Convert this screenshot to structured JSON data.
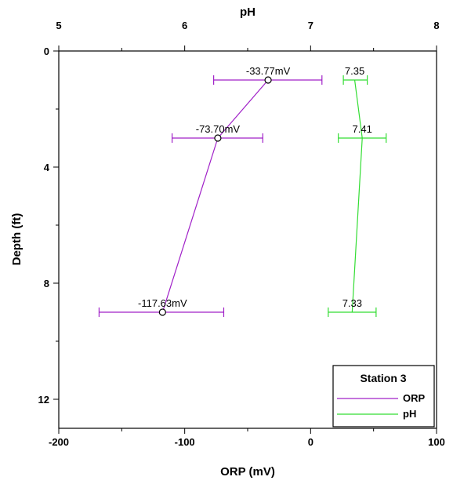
{
  "chart_data": {
    "type": "line",
    "title": "",
    "xlabel_bottom": "ORP (mV)",
    "xlabel_top": "pH",
    "ylabel": "Depth (ft)",
    "xlim_bottom": [
      -200,
      100
    ],
    "xlim_top": [
      5,
      8
    ],
    "ylim": [
      0,
      13
    ],
    "y_inverted": true,
    "xticks_bottom": [
      -200,
      -100,
      0,
      100
    ],
    "xticks_top": [
      5,
      6,
      7,
      8
    ],
    "yticks": [
      0,
      4,
      8,
      12
    ],
    "grid": false,
    "legend": {
      "title": "Station 3",
      "placement": "bottom-right",
      "entries": [
        {
          "label": "ORP",
          "color": "#a020c8"
        },
        {
          "label": "pH",
          "color": "#33dd33"
        }
      ]
    },
    "series": [
      {
        "name": "ORP",
        "axis": "bottom",
        "color": "#a020c8",
        "marker": "open-circle",
        "points": [
          {
            "depth": 1,
            "value": -33.77,
            "err_low": -77,
            "err_high": 9,
            "label": "-33.77mV"
          },
          {
            "depth": 3,
            "value": -73.7,
            "err_low": -110,
            "err_high": -38,
            "label": "-73.70mV"
          },
          {
            "depth": 9,
            "value": -117.63,
            "err_low": -168,
            "err_high": -69,
            "label": "-117.63mV"
          }
        ]
      },
      {
        "name": "pH",
        "axis": "top",
        "color": "#33dd33",
        "marker": "none",
        "points": [
          {
            "depth": 1,
            "value": 7.35,
            "err_low": 7.26,
            "err_high": 7.45,
            "label": "7.35"
          },
          {
            "depth": 3,
            "value": 7.41,
            "err_low": 7.22,
            "err_high": 7.6,
            "label": "7.41"
          },
          {
            "depth": 9,
            "value": 7.33,
            "err_low": 7.14,
            "err_high": 7.52,
            "label": "7.33"
          }
        ]
      }
    ]
  }
}
